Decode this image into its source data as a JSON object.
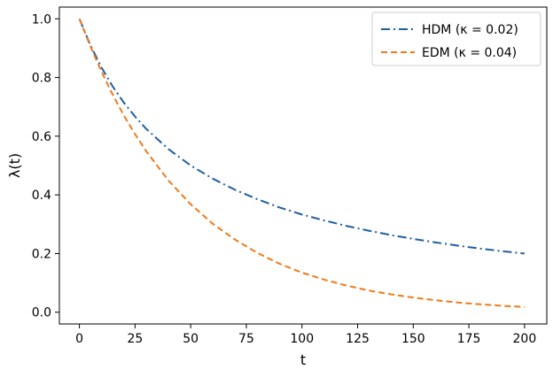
{
  "chart_data": {
    "type": "line",
    "xlabel": "t",
    "ylabel": "λ(t)",
    "xlim": [
      -9,
      210
    ],
    "ylim": [
      -0.04,
      1.04
    ],
    "xticks": [
      0,
      25,
      50,
      75,
      100,
      125,
      150,
      175,
      200
    ],
    "yticks": [
      0.0,
      0.2,
      0.4,
      0.6,
      0.8,
      1.0
    ],
    "ytick_labels": [
      "0.0",
      "0.2",
      "0.4",
      "0.6",
      "0.8",
      "1.0"
    ],
    "grid": false,
    "legend_position": "top-right",
    "series": [
      {
        "name": "HDM (κ = 0.02)",
        "color": "#1f5fa0",
        "style": "dashdot",
        "x": [
          0,
          5,
          10,
          15,
          20,
          25,
          30,
          40,
          50,
          60,
          70,
          80,
          90,
          100,
          110,
          120,
          130,
          140,
          150,
          160,
          170,
          180,
          190,
          200
        ],
        "y": [
          1.0,
          0.909,
          0.833,
          0.769,
          0.714,
          0.667,
          0.625,
          0.556,
          0.5,
          0.455,
          0.417,
          0.385,
          0.357,
          0.333,
          0.313,
          0.294,
          0.278,
          0.263,
          0.25,
          0.238,
          0.227,
          0.217,
          0.208,
          0.2
        ]
      },
      {
        "name": "EDM (κ = 0.04)",
        "color": "#f07a1a",
        "style": "dashed",
        "x": [
          0,
          5,
          10,
          15,
          20,
          25,
          30,
          40,
          50,
          60,
          70,
          80,
          90,
          100,
          110,
          120,
          130,
          140,
          150,
          160,
          170,
          180,
          190,
          200
        ],
        "y": [
          1.0,
          0.905,
          0.819,
          0.741,
          0.67,
          0.607,
          0.549,
          0.449,
          0.368,
          0.301,
          0.247,
          0.202,
          0.165,
          0.135,
          0.111,
          0.091,
          0.074,
          0.061,
          0.05,
          0.041,
          0.033,
          0.027,
          0.022,
          0.018
        ]
      }
    ]
  }
}
